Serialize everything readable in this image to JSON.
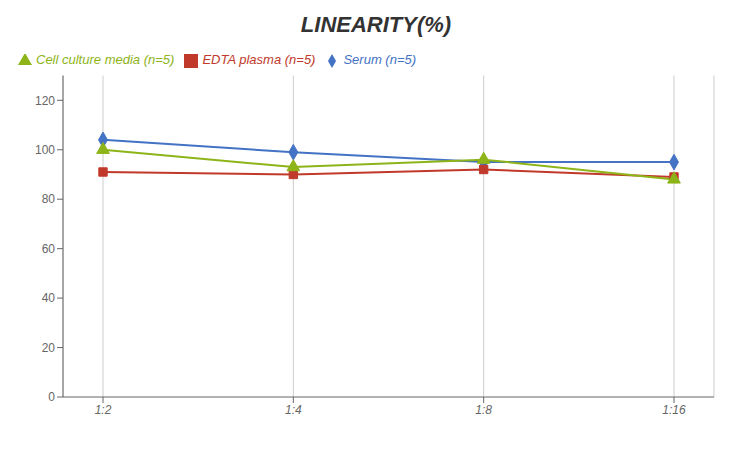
{
  "chart_data": {
    "type": "line",
    "title": "LINEARITY(%)",
    "categories": [
      "1:2",
      "1:4",
      "1:8",
      "1:16"
    ],
    "series": [
      {
        "name": "Serum (n=5)",
        "color": "#4472C4",
        "marker": "diamond",
        "values": [
          104,
          99,
          95,
          95
        ]
      },
      {
        "name": "EDTA plasma (n=5)",
        "color": "#C0392B",
        "marker": "square",
        "values": [
          91,
          90,
          92,
          89
        ]
      },
      {
        "name": "Cell culture media (n=5)",
        "color": "#8DB418",
        "marker": "triangle",
        "values": [
          100,
          93,
          96,
          88
        ]
      }
    ],
    "ylim": [
      0,
      130
    ],
    "yticks": [
      0,
      20,
      40,
      60,
      80,
      100,
      120
    ],
    "grid": "x",
    "legend": "top"
  }
}
